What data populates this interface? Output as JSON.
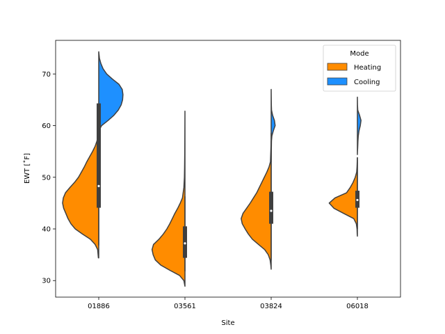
{
  "chart_data": {
    "type": "violin",
    "split": true,
    "xlabel": "Site",
    "ylabel": "EWT [$^\\circ$F]",
    "ylabel_display": "EWT [˚F]",
    "ylim": [
      26.8,
      76.5
    ],
    "yticks": [
      30,
      40,
      50,
      60,
      70
    ],
    "categories": [
      "01886",
      "03561",
      "03824",
      "06018"
    ],
    "legend": {
      "title": "Mode",
      "position": "top-right",
      "entries": [
        {
          "name": "Heating",
          "color": "#ff8c00"
        },
        {
          "name": "Cooling",
          "color": "#1e90ff"
        }
      ]
    },
    "series": [
      {
        "name": "Heating",
        "side": "left",
        "color": "#ff8c00",
        "violins": [
          {
            "category": "01886",
            "min": 34.4,
            "max": 60.5,
            "density": [
              [
                34.4,
                0.01
              ],
              [
                36,
                0.03
              ],
              [
                37,
                0.1
              ],
              [
                38,
                0.23
              ],
              [
                39,
                0.45
              ],
              [
                40,
                0.65
              ],
              [
                41,
                0.77
              ],
              [
                42,
                0.85
              ],
              [
                43,
                0.91
              ],
              [
                44,
                0.97
              ],
              [
                45,
                1.0
              ],
              [
                46,
                0.98
              ],
              [
                47,
                0.92
              ],
              [
                48,
                0.8
              ],
              [
                49,
                0.67
              ],
              [
                50,
                0.56
              ],
              [
                51,
                0.48
              ],
              [
                52,
                0.4
              ],
              [
                53,
                0.33
              ],
              [
                54,
                0.25
              ],
              [
                55,
                0.17
              ],
              [
                56,
                0.1
              ],
              [
                57,
                0.05
              ],
              [
                58,
                0.02
              ],
              [
                60.5,
                0.0
              ]
            ]
          },
          {
            "category": "03561",
            "min": 28.9,
            "max": 62.8,
            "density": [
              [
                28.9,
                0.0
              ],
              [
                30,
                0.03
              ],
              [
                31,
                0.15
              ],
              [
                32,
                0.42
              ],
              [
                33,
                0.67
              ],
              [
                34,
                0.82
              ],
              [
                35,
                0.88
              ],
              [
                36,
                0.91
              ],
              [
                37,
                0.87
              ],
              [
                38,
                0.72
              ],
              [
                39,
                0.6
              ],
              [
                40,
                0.5
              ],
              [
                41,
                0.42
              ],
              [
                42,
                0.35
              ],
              [
                43,
                0.28
              ],
              [
                44,
                0.2
              ],
              [
                45,
                0.13
              ],
              [
                46,
                0.07
              ],
              [
                48,
                0.03
              ],
              [
                50,
                0.015
              ],
              [
                52,
                0.01
              ],
              [
                55,
                0.005
              ],
              [
                58,
                0.003
              ],
              [
                62.8,
                0.0
              ]
            ]
          },
          {
            "category": "03824",
            "min": 32.2,
            "max": 57.0,
            "density": [
              [
                32.2,
                0.0
              ],
              [
                33,
                0.01
              ],
              [
                34,
                0.03
              ],
              [
                35,
                0.08
              ],
              [
                36,
                0.18
              ],
              [
                37,
                0.35
              ],
              [
                38,
                0.52
              ],
              [
                39,
                0.63
              ],
              [
                40,
                0.72
              ],
              [
                41,
                0.8
              ],
              [
                42,
                0.83
              ],
              [
                43,
                0.78
              ],
              [
                44,
                0.68
              ],
              [
                45,
                0.58
              ],
              [
                46,
                0.49
              ],
              [
                47,
                0.4
              ],
              [
                48,
                0.33
              ],
              [
                49,
                0.26
              ],
              [
                50,
                0.19
              ],
              [
                51,
                0.12
              ],
              [
                52,
                0.06
              ],
              [
                53,
                0.02
              ],
              [
                55,
                0.01
              ],
              [
                57,
                0.0
              ]
            ]
          },
          {
            "category": "06018",
            "min": 38.6,
            "max": 53.8,
            "density": [
              [
                38.6,
                0.0
              ],
              [
                39,
                0.005
              ],
              [
                40,
                0.01
              ],
              [
                41,
                0.03
              ],
              [
                42,
                0.1
              ],
              [
                43,
                0.38
              ],
              [
                44,
                0.65
              ],
              [
                45,
                0.78
              ],
              [
                46,
                0.62
              ],
              [
                47,
                0.3
              ],
              [
                48,
                0.2
              ],
              [
                49,
                0.12
              ],
              [
                50,
                0.06
              ],
              [
                51,
                0.02
              ],
              [
                52,
                0.01
              ],
              [
                53.8,
                0.0
              ]
            ]
          }
        ]
      },
      {
        "name": "Cooling",
        "side": "right",
        "color": "#1e90ff",
        "violins": [
          {
            "category": "01886",
            "min": 59.0,
            "max": 74.3,
            "density": [
              [
                59,
                0.0
              ],
              [
                60,
                0.08
              ],
              [
                61,
                0.26
              ],
              [
                62,
                0.42
              ],
              [
                63,
                0.54
              ],
              [
                64,
                0.62
              ],
              [
                65,
                0.66
              ],
              [
                66,
                0.67
              ],
              [
                67,
                0.65
              ],
              [
                68,
                0.56
              ],
              [
                69,
                0.38
              ],
              [
                70,
                0.22
              ],
              [
                71,
                0.12
              ],
              [
                72,
                0.06
              ],
              [
                73,
                0.02
              ],
              [
                74.3,
                0.0
              ]
            ]
          },
          {
            "category": "03824",
            "min": 53.0,
            "max": 67.0,
            "density": [
              [
                53,
                0.0
              ],
              [
                55,
                0.003
              ],
              [
                56,
                0.006
              ],
              [
                57,
                0.008
              ],
              [
                58,
                0.02
              ],
              [
                59,
                0.06
              ],
              [
                60,
                0.11
              ],
              [
                61,
                0.09
              ],
              [
                62,
                0.04
              ],
              [
                63,
                0.01
              ],
              [
                64,
                0.005
              ],
              [
                67,
                0.0
              ]
            ]
          },
          {
            "category": "06018",
            "min": 54.4,
            "max": 65.5,
            "density": [
              [
                54.4,
                0.0
              ],
              [
                55,
                0.003
              ],
              [
                56,
                0.01
              ],
              [
                57,
                0.015
              ],
              [
                58,
                0.025
              ],
              [
                59,
                0.045
              ],
              [
                60,
                0.08
              ],
              [
                61,
                0.1
              ],
              [
                62,
                0.06
              ],
              [
                63,
                0.01
              ],
              [
                64,
                0.003
              ],
              [
                65.5,
                0.0
              ]
            ]
          }
        ]
      }
    ],
    "box_stats": [
      {
        "category": "01886",
        "whisker_low": 36.8,
        "q1": 44.1,
        "median": 48.3,
        "q3": 64.3,
        "whisker_high": 64.3
      },
      {
        "category": "03561",
        "whisker_low": 31.8,
        "q1": 34.4,
        "median": 37.2,
        "q3": 40.5,
        "whisker_high": 46.3
      },
      {
        "category": "03824",
        "whisker_low": 33.9,
        "q1": 41.0,
        "median": 43.5,
        "q3": 47.2,
        "whisker_high": 58.6
      },
      {
        "category": "06018",
        "whisker_low": 40.0,
        "q1": 44.1,
        "median": 45.6,
        "q3": 47.4,
        "whisker_high": 53.8
      }
    ]
  }
}
